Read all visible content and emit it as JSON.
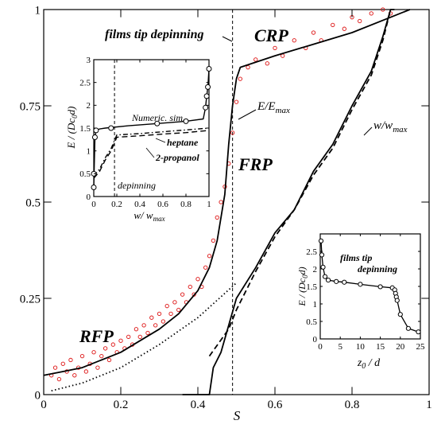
{
  "chart_data": [
    {
      "type": "line",
      "role": "main",
      "xlabel": "S",
      "ylabel": "",
      "xlim": [
        0,
        1
      ],
      "ylim": [
        0,
        1
      ],
      "x_ticks": [
        "0",
        "0.2",
        "0.4",
        "0.6",
        "0.8",
        "1"
      ],
      "y_ticks": [
        "0",
        "0.25",
        "0.5",
        "0.75",
        "1"
      ],
      "grid": false,
      "annotations": {
        "films_tip": "films tip depinning",
        "crp": "CRP",
        "frp": "FRP",
        "rfp": "RFP",
        "e_label": "E/E",
        "e_label_sub": "max",
        "w_label": "w/w",
        "w_label_sub": "max"
      },
      "vline_x": 0.49,
      "series": [
        {
          "key": "e_model",
          "style": "solid",
          "x": [
            0,
            0.05,
            0.1,
            0.15,
            0.2,
            0.25,
            0.3,
            0.35,
            0.4,
            0.43,
            0.45,
            0.47,
            0.48,
            0.49,
            0.5,
            0.51,
            0.6,
            0.7,
            0.8,
            0.9,
            0.95
          ],
          "y": [
            0.05,
            0.06,
            0.07,
            0.09,
            0.11,
            0.14,
            0.17,
            0.21,
            0.27,
            0.33,
            0.4,
            0.52,
            0.65,
            0.75,
            0.82,
            0.85,
            0.88,
            0.91,
            0.94,
            0.98,
            1.0
          ]
        },
        {
          "key": "e_fit_dotted",
          "style": "dotted",
          "x": [
            0.02,
            0.1,
            0.2,
            0.3,
            0.4,
            0.5
          ],
          "y": [
            0.01,
            0.03,
            0.07,
            0.13,
            0.2,
            0.29
          ]
        },
        {
          "key": "w_solid",
          "style": "solid",
          "x": [
            0.36,
            0.4,
            0.43,
            0.44,
            0.46,
            0.48,
            0.5,
            0.55,
            0.6,
            0.65,
            0.7,
            0.75,
            0.8,
            0.85,
            0.88,
            0.9,
            0.91
          ],
          "y": [
            0.0,
            0.0,
            0.0,
            0.07,
            0.11,
            0.18,
            0.25,
            0.33,
            0.42,
            0.48,
            0.58,
            0.65,
            0.75,
            0.84,
            0.93,
            1.0,
            1.0
          ]
        },
        {
          "key": "w_dashed",
          "style": "dashed",
          "x": [
            0.43,
            0.48,
            0.5,
            0.55,
            0.6,
            0.65,
            0.7,
            0.75,
            0.8,
            0.85,
            0.88,
            0.9
          ],
          "y": [
            0.1,
            0.17,
            0.22,
            0.32,
            0.41,
            0.48,
            0.57,
            0.64,
            0.74,
            0.83,
            0.92,
            1.0
          ]
        }
      ],
      "scatter_points": [
        [
          0.02,
          0.05
        ],
        [
          0.03,
          0.07
        ],
        [
          0.04,
          0.04
        ],
        [
          0.05,
          0.08
        ],
        [
          0.06,
          0.06
        ],
        [
          0.07,
          0.09
        ],
        [
          0.08,
          0.05
        ],
        [
          0.09,
          0.07
        ],
        [
          0.1,
          0.1
        ],
        [
          0.11,
          0.06
        ],
        [
          0.12,
          0.08
        ],
        [
          0.13,
          0.11
        ],
        [
          0.14,
          0.07
        ],
        [
          0.15,
          0.1
        ],
        [
          0.16,
          0.12
        ],
        [
          0.17,
          0.09
        ],
        [
          0.18,
          0.13
        ],
        [
          0.19,
          0.11
        ],
        [
          0.2,
          0.14
        ],
        [
          0.21,
          0.12
        ],
        [
          0.22,
          0.15
        ],
        [
          0.23,
          0.13
        ],
        [
          0.24,
          0.17
        ],
        [
          0.25,
          0.15
        ],
        [
          0.26,
          0.18
        ],
        [
          0.27,
          0.16
        ],
        [
          0.28,
          0.2
        ],
        [
          0.29,
          0.18
        ],
        [
          0.3,
          0.21
        ],
        [
          0.31,
          0.19
        ],
        [
          0.32,
          0.23
        ],
        [
          0.33,
          0.21
        ],
        [
          0.34,
          0.24
        ],
        [
          0.35,
          0.22
        ],
        [
          0.36,
          0.26
        ],
        [
          0.37,
          0.24
        ],
        [
          0.38,
          0.28
        ],
        [
          0.39,
          0.26
        ],
        [
          0.4,
          0.3
        ],
        [
          0.41,
          0.28
        ],
        [
          0.42,
          0.33
        ],
        [
          0.43,
          0.36
        ],
        [
          0.44,
          0.4
        ],
        [
          0.45,
          0.46
        ],
        [
          0.46,
          0.5
        ],
        [
          0.47,
          0.54
        ],
        [
          0.48,
          0.6
        ],
        [
          0.49,
          0.68
        ],
        [
          0.5,
          0.76
        ],
        [
          0.51,
          0.82
        ],
        [
          0.53,
          0.85
        ],
        [
          0.55,
          0.87
        ],
        [
          0.58,
          0.86
        ],
        [
          0.6,
          0.9
        ],
        [
          0.62,
          0.88
        ],
        [
          0.65,
          0.92
        ],
        [
          0.68,
          0.9
        ],
        [
          0.7,
          0.94
        ],
        [
          0.72,
          0.92
        ],
        [
          0.75,
          0.96
        ],
        [
          0.78,
          0.95
        ],
        [
          0.8,
          0.98
        ],
        [
          0.82,
          0.97
        ],
        [
          0.85,
          0.99
        ],
        [
          0.88,
          1.0
        ],
        [
          0.9,
          0.99
        ]
      ]
    },
    {
      "type": "line",
      "role": "inset-left",
      "xlabel": "w/ w",
      "xlabel_sub": "max",
      "ylabel": "E / (Dc",
      "ylabel_sub": "0",
      "ylabel_tail": "d)",
      "xlim": [
        0,
        1
      ],
      "ylim": [
        0,
        3
      ],
      "x_ticks": [
        "0",
        "0.2",
        "0.4",
        "0.6",
        "0.8",
        "1"
      ],
      "y_ticks": [
        "0",
        "0.5",
        "1",
        "1.5",
        "2",
        "2.5",
        "3"
      ],
      "annotations": {
        "numeric": "Numeric. sim.",
        "heptane": "heptane",
        "propanol": "2-propanol",
        "depinning": "depinning"
      },
      "vline_x": 0.18,
      "series": [
        {
          "key": "numeric",
          "style": "solid",
          "x": [
            0,
            0.01,
            0.02,
            0.05,
            0.1,
            0.3,
            0.55,
            0.8,
            0.95,
            0.97,
            0.98,
            0.99,
            1.0
          ],
          "y": [
            0.2,
            1.3,
            1.45,
            1.48,
            1.5,
            1.55,
            1.6,
            1.65,
            1.7,
            1.95,
            2.2,
            2.4,
            2.8
          ]
        },
        {
          "key": "heptane",
          "style": "dash-dot",
          "x": [
            0,
            0.05,
            0.1,
            0.15,
            0.2,
            0.4,
            0.6,
            0.8,
            1.0
          ],
          "y": [
            0.45,
            0.6,
            0.85,
            1.05,
            1.35,
            1.38,
            1.42,
            1.46,
            1.5
          ]
        },
        {
          "key": "propanol",
          "style": "dashed",
          "x": [
            0,
            0.05,
            0.1,
            0.15,
            0.2,
            0.4,
            0.6,
            0.8,
            1.0
          ],
          "y": [
            0.4,
            0.55,
            0.8,
            1.0,
            1.3,
            1.33,
            1.37,
            1.4,
            1.45
          ]
        }
      ],
      "markers": [
        [
          0,
          0.2
        ],
        [
          0,
          0.5
        ],
        [
          0.01,
          1.3
        ],
        [
          0.02,
          1.45
        ],
        [
          0.15,
          1.5
        ],
        [
          0.55,
          1.6
        ],
        [
          0.8,
          1.65
        ],
        [
          0.97,
          1.95
        ],
        [
          0.98,
          2.2
        ],
        [
          0.99,
          2.4
        ],
        [
          1.0,
          2.8
        ]
      ]
    },
    {
      "type": "line",
      "role": "inset-right",
      "xlabel": "z",
      "xlabel_sub": "0",
      "xlabel_tail": " / d",
      "ylabel": "E / (Dc",
      "ylabel_sub": "0",
      "ylabel_tail": "d)",
      "xlim": [
        0,
        25
      ],
      "ylim": [
        0,
        3
      ],
      "x_ticks": [
        "0",
        "5",
        "10",
        "15",
        "20",
        "25"
      ],
      "y_ticks": [
        "0",
        "0.5",
        "1",
        "1.5",
        "2",
        "2.5"
      ],
      "annotations": {
        "films_tip": "films tip",
        "depinning": "depinning"
      },
      "series": [
        {
          "key": "main",
          "style": "solid",
          "x": [
            0.2,
            0.4,
            0.7,
            1.2,
            2,
            4,
            6,
            10,
            15,
            18,
            18.6,
            18.8,
            19,
            19.2,
            20,
            22,
            24.5
          ],
          "y": [
            2.8,
            2.4,
            2.05,
            1.78,
            1.68,
            1.64,
            1.62,
            1.56,
            1.49,
            1.46,
            1.4,
            1.3,
            1.2,
            1.1,
            0.7,
            0.3,
            0.2
          ]
        }
      ],
      "markers": [
        [
          0.2,
          2.8
        ],
        [
          0.4,
          2.4
        ],
        [
          0.7,
          2.05
        ],
        [
          1.2,
          1.78
        ],
        [
          2,
          1.68
        ],
        [
          4,
          1.64
        ],
        [
          6,
          1.62
        ],
        [
          10,
          1.56
        ],
        [
          15,
          1.49
        ],
        [
          18,
          1.46
        ],
        [
          18.6,
          1.4
        ],
        [
          18.8,
          1.3
        ],
        [
          19,
          1.2
        ],
        [
          19.2,
          1.1
        ],
        [
          20,
          0.7
        ],
        [
          22,
          0.3
        ],
        [
          24.5,
          0.2
        ]
      ]
    }
  ]
}
